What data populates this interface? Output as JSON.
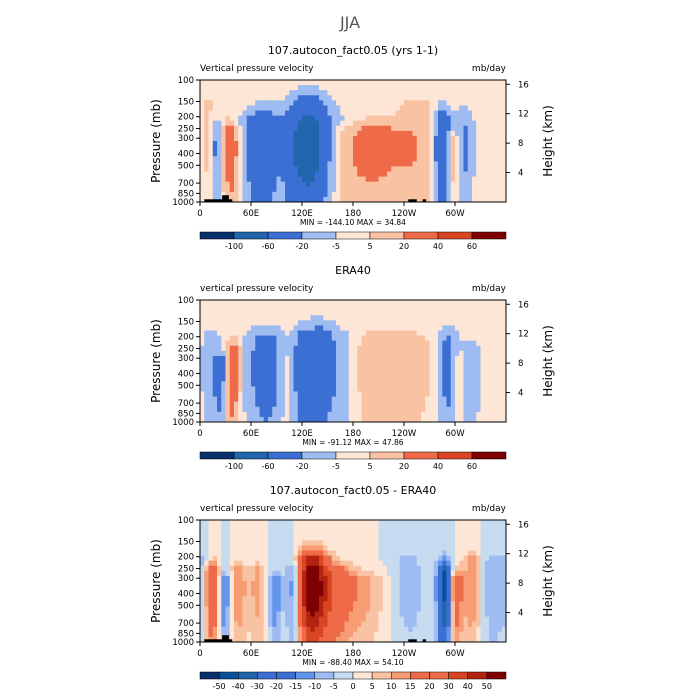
{
  "figure": {
    "title": "JJA",
    "colors": {
      "negative": [
        "#08306b",
        "#08519c",
        "#2166ac",
        "#3b6fd4",
        "#6495ed",
        "#9fbcf2",
        "#c6dbef"
      ],
      "positive": [
        "#fde6d6",
        "#f9c3a3",
        "#f79d74",
        "#ef6a48",
        "#d94422",
        "#b2240f",
        "#7f0000"
      ],
      "topography": "#000000"
    }
  },
  "chart_data": [
    {
      "type": "heatmap",
      "title": "107.autocon_fact0.05 (yrs 1-1)",
      "subtitle_left": "Vertical pressure velocity",
      "subtitle_right": "mb/day",
      "ylabel": "Pressure (mb)",
      "y2label": "Height (km)",
      "yticks": [
        100,
        150,
        200,
        250,
        300,
        400,
        500,
        700,
        850,
        1000
      ],
      "y2ticks": [
        4,
        8,
        12,
        16
      ],
      "xticks": [
        "0",
        "60E",
        "120E",
        "180",
        "120W",
        "60W"
      ],
      "xtick_lon": [
        0,
        60,
        120,
        180,
        240,
        300
      ],
      "xlim": [
        0,
        360
      ],
      "ylim": [
        1000,
        100
      ],
      "stats_text": "MIN = -144.10   MAX =   34.84",
      "min": -144.1,
      "max": 34.84,
      "colorbar_labels": [
        "-100",
        "-60",
        "-20",
        "-5",
        "5",
        "20",
        "40",
        "60"
      ],
      "colorbar_levels": [
        -100,
        -60,
        -20,
        -5,
        5,
        20,
        40,
        60
      ],
      "topography": true,
      "features": [
        {
          "lon": 10,
          "width": 6,
          "p0": 150,
          "value": 10
        },
        {
          "lon": 20,
          "width": 6,
          "p0": 250,
          "value": -30
        },
        {
          "lon": 33,
          "width": 7,
          "p0": 250,
          "value": 30
        },
        {
          "lon": 42,
          "width": 5,
          "p0": 300,
          "value": 15
        },
        {
          "lon": 75,
          "width": 16,
          "p0": 200,
          "value": -50
        },
        {
          "lon": 92,
          "width": 6,
          "p0": 350,
          "value": 8
        },
        {
          "lon": 110,
          "width": 8,
          "p0": 200,
          "value": -20
        },
        {
          "lon": 128,
          "width": 14,
          "p0": 150,
          "value": -75
        },
        {
          "lon": 150,
          "width": 18,
          "p0": 200,
          "value": -20
        },
        {
          "lon": 165,
          "width": 18,
          "p0": 300,
          "value": 10
        },
        {
          "lon": 205,
          "width": 34,
          "p0": 250,
          "value": 25
        },
        {
          "lon": 255,
          "width": 15,
          "p0": 150,
          "value": 12
        },
        {
          "lon": 285,
          "width": 6,
          "p0": 200,
          "value": -60
        },
        {
          "lon": 298,
          "width": 6,
          "p0": 300,
          "value": 20
        },
        {
          "lon": 310,
          "width": 8,
          "p0": 200,
          "value": -25
        },
        {
          "lon": 340,
          "width": 10,
          "p0": 150,
          "value": 5
        }
      ]
    },
    {
      "type": "heatmap",
      "title": "ERA40",
      "subtitle_left": "vertical pressure velocity",
      "subtitle_right": "mb/day",
      "ylabel": "Pressure (mb)",
      "y2label": "Height (km)",
      "yticks": [
        100,
        150,
        200,
        250,
        300,
        400,
        500,
        700,
        850,
        1000
      ],
      "y2ticks": [
        4,
        8,
        12,
        16
      ],
      "xticks": [
        "0",
        "60E",
        "120E",
        "180",
        "120W",
        "60W"
      ],
      "xtick_lon": [
        0,
        60,
        120,
        180,
        240,
        300
      ],
      "xlim": [
        0,
        360
      ],
      "ylim": [
        1000,
        100
      ],
      "stats_text": "MIN = -91.12   MAX =   47.86",
      "min": -91.12,
      "max": 47.86,
      "colorbar_labels": [
        "-100",
        "-60",
        "-20",
        "-5",
        "5",
        "20",
        "40",
        "60"
      ],
      "colorbar_levels": [
        -100,
        -60,
        -20,
        -5,
        5,
        20,
        40,
        60
      ],
      "topography": false,
      "features": [
        {
          "lon": 12,
          "width": 8,
          "p0": 200,
          "value": -15
        },
        {
          "lon": 25,
          "width": 6,
          "p0": 300,
          "value": -30
        },
        {
          "lon": 38,
          "width": 6,
          "p0": 250,
          "value": 40
        },
        {
          "lon": 60,
          "width": 10,
          "p0": 200,
          "value": -10
        },
        {
          "lon": 80,
          "width": 12,
          "p0": 200,
          "value": -35
        },
        {
          "lon": 100,
          "width": 6,
          "p0": 300,
          "value": 5
        },
        {
          "lon": 120,
          "width": 8,
          "p0": 200,
          "value": -25
        },
        {
          "lon": 140,
          "width": 14,
          "p0": 180,
          "value": -45
        },
        {
          "lon": 170,
          "width": 10,
          "p0": 200,
          "value": -10
        },
        {
          "lon": 225,
          "width": 28,
          "p0": 200,
          "value": 20
        },
        {
          "lon": 292,
          "width": 8,
          "p0": 200,
          "value": -30
        },
        {
          "lon": 305,
          "width": 5,
          "p0": 300,
          "value": 15
        },
        {
          "lon": 318,
          "width": 8,
          "p0": 250,
          "value": -20
        },
        {
          "lon": 345,
          "width": 12,
          "p0": 200,
          "value": 5
        }
      ]
    },
    {
      "type": "heatmap",
      "title": "107.autocon_fact0.05 - ERA40",
      "subtitle_left": "vertical pressure velocity",
      "subtitle_right": "mb/day",
      "ylabel": "Pressure (mb)",
      "y2label": "Height (km)",
      "yticks": [
        100,
        150,
        200,
        250,
        300,
        400,
        500,
        700,
        850,
        1000
      ],
      "y2ticks": [
        4,
        8,
        12,
        16
      ],
      "xticks": [
        "0",
        "60E",
        "120E",
        "180",
        "120W",
        "60W"
      ],
      "xtick_lon": [
        0,
        60,
        120,
        180,
        240,
        300
      ],
      "xlim": [
        0,
        360
      ],
      "ylim": [
        1000,
        100
      ],
      "stats_text": "MIN = -88.40   MAX =   54.10",
      "min": -88.4,
      "max": 54.1,
      "colorbar_labels": [
        "-50",
        "-40",
        "-30",
        "-20",
        "-15",
        "-10",
        "-5",
        "0",
        "5",
        "10",
        "15",
        "20",
        "30",
        "40",
        "50"
      ],
      "colorbar_levels": [
        -50,
        -40,
        -30,
        -20,
        -15,
        -10,
        -5,
        0,
        5,
        10,
        15,
        20,
        30,
        40,
        50
      ],
      "topography": true,
      "features": [
        {
          "lon": 4,
          "width": 5,
          "p0": 200,
          "value": -10
        },
        {
          "lon": 14,
          "width": 7,
          "p0": 250,
          "value": 30
        },
        {
          "lon": 28,
          "width": 6,
          "p0": 300,
          "value": -20
        },
        {
          "lon": 45,
          "width": 7,
          "p0": 250,
          "value": 15
        },
        {
          "lon": 68,
          "width": 8,
          "p0": 250,
          "value": 12
        },
        {
          "lon": 88,
          "width": 6,
          "p0": 300,
          "value": -15
        },
        {
          "lon": 110,
          "width": 6,
          "p0": 250,
          "value": -15
        },
        {
          "lon": 125,
          "width": 8,
          "p0": 200,
          "value": 35
        },
        {
          "lon": 138,
          "width": 10,
          "p0": 200,
          "value": 40
        },
        {
          "lon": 158,
          "width": 14,
          "p0": 250,
          "value": 20
        },
        {
          "lon": 190,
          "width": 20,
          "p0": 300,
          "value": 12
        },
        {
          "lon": 245,
          "width": 15,
          "p0": 200,
          "value": -8
        },
        {
          "lon": 288,
          "width": 6,
          "p0": 250,
          "value": -45
        },
        {
          "lon": 300,
          "width": 6,
          "p0": 300,
          "value": 25
        },
        {
          "lon": 320,
          "width": 8,
          "p0": 200,
          "value": 15
        },
        {
          "lon": 345,
          "width": 10,
          "p0": 200,
          "value": -10
        }
      ]
    }
  ]
}
